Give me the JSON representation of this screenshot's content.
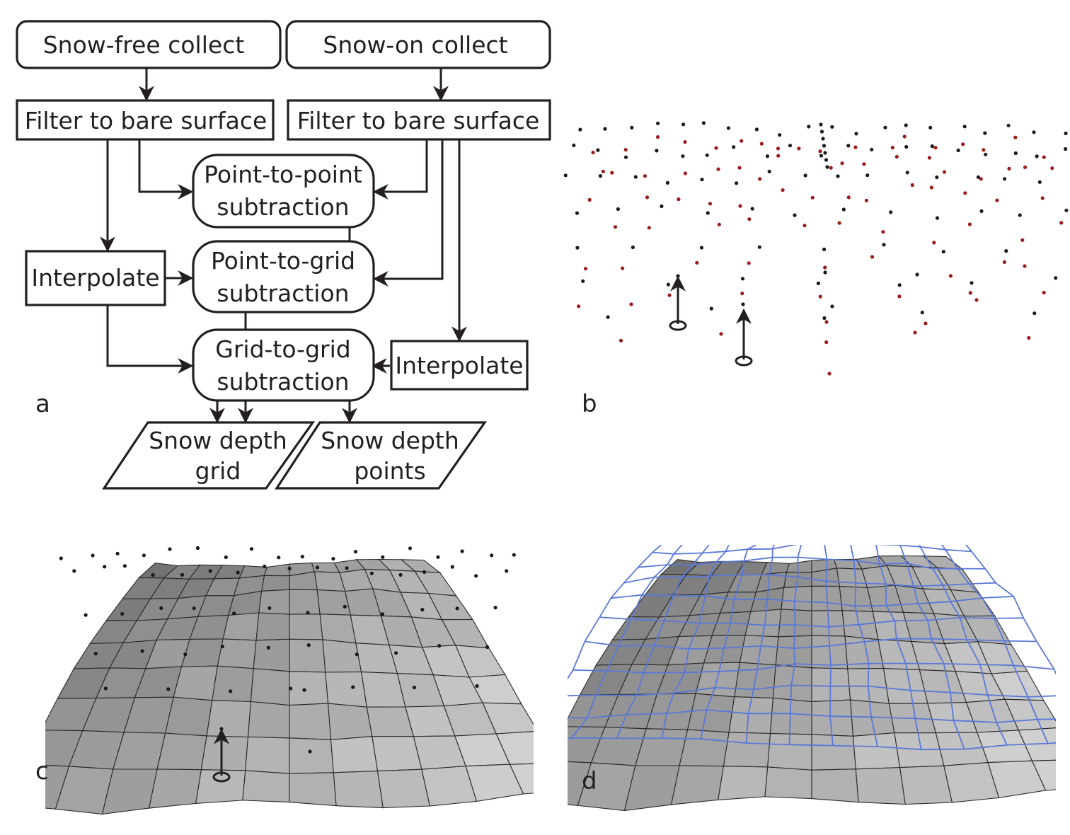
{
  "panel_a": {
    "letter": "a",
    "nodes": {
      "snow_free_collect": "Snow-free collect",
      "snow_on_collect": "Snow-on collect",
      "filter_left": "Filter to bare surface",
      "filter_right": "Filter to bare surface",
      "p2p": [
        "Point-to-point",
        "subtraction"
      ],
      "p2g": [
        "Point-to-grid",
        "subtraction"
      ],
      "g2g": [
        "Grid-to-grid",
        "subtraction"
      ],
      "interp_left": "Interpolate",
      "interp_right": "Interpolate",
      "grid_out": [
        "Snow depth",
        "grid"
      ],
      "points_out": [
        "Snow depth",
        "points"
      ]
    }
  },
  "panel_b": {
    "letter": "b"
  },
  "panel_c": {
    "letter": "c"
  },
  "panel_d": {
    "letter": "d"
  },
  "colors": {
    "ink": "#231f20",
    "snow_free_point": "#1a1a1a",
    "snow_on_point": "#9b1c1c",
    "snow_on_grid": "#5a78d8"
  }
}
